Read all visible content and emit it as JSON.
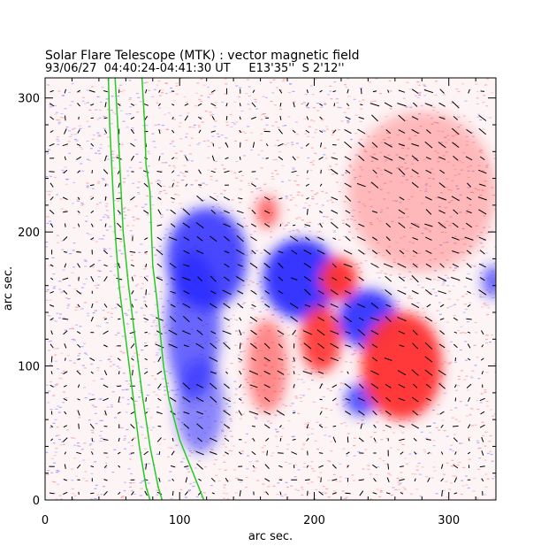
{
  "chart_data": {
    "type": "heatmap",
    "title": "Solar Flare Telescope (MTK) : vector magnetic field",
    "subtitle": "93/06/27  04:40:24-04:41:30 UT     E13'35''  S 2'12''",
    "xlabel": "arc sec.",
    "ylabel": "arc sec.",
    "xlim": [
      0,
      335
    ],
    "ylim": [
      0,
      315
    ],
    "xticks": [
      0,
      100,
      200,
      300
    ],
    "yticks": [
      0,
      100,
      200,
      300
    ],
    "legend": "none",
    "colors": {
      "positive": "#ff3030",
      "negative": "#2a2aff",
      "contour": "#22cc22",
      "vector": "#000000",
      "axis": "#000000"
    },
    "regions": [
      {
        "polarity": "negative",
        "x": 120,
        "y": 180,
        "rx": 30,
        "ry": 38,
        "strength": 0.85
      },
      {
        "polarity": "negative",
        "x": 110,
        "y": 130,
        "rx": 20,
        "ry": 55,
        "strength": 0.7
      },
      {
        "polarity": "negative",
        "x": 115,
        "y": 70,
        "rx": 18,
        "ry": 35,
        "strength": 0.55
      },
      {
        "polarity": "negative",
        "x": 190,
        "y": 165,
        "rx": 28,
        "ry": 30,
        "strength": 0.95
      },
      {
        "polarity": "negative",
        "x": 240,
        "y": 135,
        "rx": 22,
        "ry": 22,
        "strength": 0.9
      },
      {
        "polarity": "negative",
        "x": 235,
        "y": 75,
        "rx": 12,
        "ry": 12,
        "strength": 0.8
      },
      {
        "polarity": "negative",
        "x": 333,
        "y": 163,
        "rx": 8,
        "ry": 12,
        "strength": 0.7
      },
      {
        "polarity": "positive",
        "x": 265,
        "y": 100,
        "rx": 30,
        "ry": 40,
        "strength": 0.95
      },
      {
        "polarity": "positive",
        "x": 205,
        "y": 120,
        "rx": 15,
        "ry": 25,
        "strength": 0.9
      },
      {
        "polarity": "positive",
        "x": 218,
        "y": 165,
        "rx": 14,
        "ry": 16,
        "strength": 0.95
      },
      {
        "polarity": "positive",
        "x": 165,
        "y": 215,
        "rx": 8,
        "ry": 12,
        "strength": 0.7
      },
      {
        "polarity": "positive",
        "x": 165,
        "y": 100,
        "rx": 15,
        "ry": 35,
        "strength": 0.55
      },
      {
        "polarity": "positive",
        "x": 280,
        "y": 230,
        "rx": 55,
        "ry": 60,
        "strength": 0.3
      }
    ],
    "contours": [
      {
        "name": "",
        "points": [
          [
            47,
            315
          ],
          [
            48,
            280
          ],
          [
            50,
            240
          ],
          [
            52,
            200
          ],
          [
            55,
            160
          ],
          [
            60,
            120
          ],
          [
            65,
            80
          ],
          [
            70,
            40
          ],
          [
            75,
            10
          ],
          [
            78,
            0
          ]
        ]
      },
      {
        "name": "",
        "points": [
          [
            52,
            315
          ],
          [
            54,
            280
          ],
          [
            56,
            240
          ],
          [
            58,
            200
          ],
          [
            62,
            160
          ],
          [
            67,
            120
          ],
          [
            72,
            80
          ],
          [
            78,
            40
          ],
          [
            84,
            10
          ],
          [
            87,
            0
          ]
        ]
      },
      {
        "name": "",
        "points": [
          [
            72,
            315
          ],
          [
            74,
            280
          ],
          [
            75,
            250
          ],
          [
            78,
            230
          ],
          [
            79,
            200
          ],
          [
            80,
            175
          ],
          [
            83,
            150
          ],
          [
            86,
            120
          ],
          [
            88,
            100
          ],
          [
            92,
            75
          ],
          [
            100,
            45
          ],
          [
            110,
            20
          ],
          [
            118,
            0
          ]
        ]
      }
    ]
  }
}
